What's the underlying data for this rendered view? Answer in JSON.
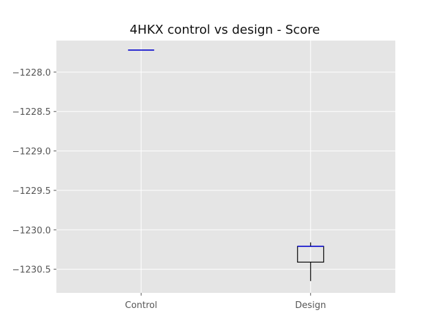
{
  "chart_data": {
    "type": "box",
    "title": "4HKX control vs design - Score",
    "xlabel": "",
    "ylabel": "",
    "categories": [
      "Control",
      "Design"
    ],
    "ylim": [
      -1230.8,
      -1227.6
    ],
    "yticks": [
      -1228.0,
      -1228.5,
      -1229.0,
      -1229.5,
      -1230.0,
      -1230.5
    ],
    "ytick_labels": [
      "−1228.0",
      "−1228.5",
      "−1229.0",
      "−1229.5",
      "−1230.0",
      "−1230.5"
    ],
    "grid": true,
    "boxes": [
      {
        "category": "Control",
        "whisker_low": -1227.72,
        "q1": -1227.72,
        "median": -1227.72,
        "q3": -1227.72,
        "whisker_high": -1227.72
      },
      {
        "category": "Design",
        "whisker_low": -1230.65,
        "q1": -1230.41,
        "median": -1230.21,
        "q3": -1230.21,
        "whisker_high": -1230.16
      }
    ],
    "colors": {
      "plot_background": "#e5e5e5",
      "grid": "#ffffff",
      "box": "#000000",
      "median": "#0000cc"
    }
  }
}
